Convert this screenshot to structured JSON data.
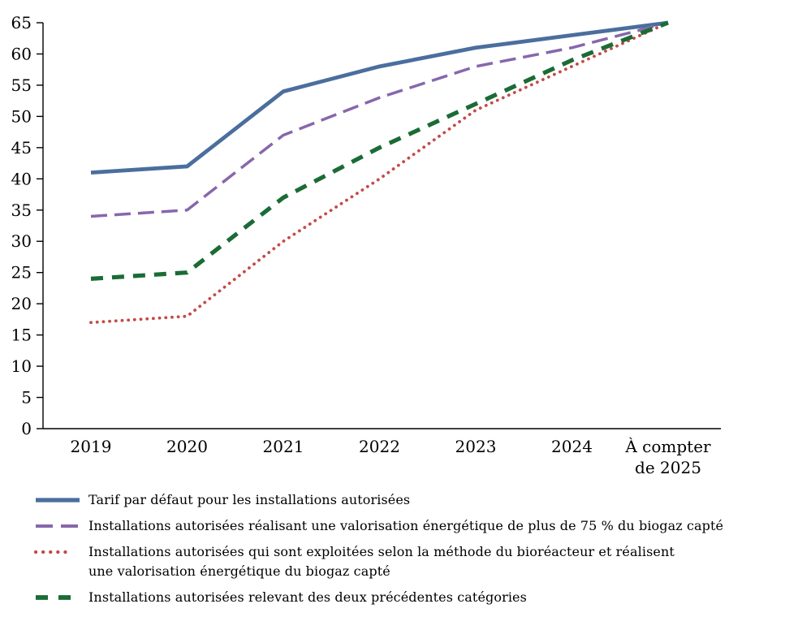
{
  "chart_data": {
    "type": "line",
    "title": "",
    "xlabel": "",
    "ylabel": "",
    "categories": [
      "2019",
      "2020",
      "2021",
      "2022",
      "2023",
      "2024",
      "À compter de 2025"
    ],
    "last_category_lines": [
      "À compter",
      "de 2025"
    ],
    "ylim": [
      0,
      65
    ],
    "ytick_step": 5,
    "ytick_labels": [
      "0",
      "5",
      "10",
      "15",
      "20",
      "25",
      "30",
      "35",
      "40",
      "45",
      "50",
      "55",
      "60",
      "65"
    ],
    "grid": false,
    "legend_position": "bottom",
    "axis_color": "#000000",
    "series": [
      {
        "name": "Tarif par défaut pour les installations autorisées",
        "slug": "tarif-par-defaut",
        "values": [
          41,
          42,
          54,
          58,
          61,
          63,
          65
        ],
        "color": "#4A6E9E",
        "style": "solid",
        "width": 4.8
      },
      {
        "name": "Installations autorisées réalisant une valorisation énergétique de plus de 75 % du biogaz capté",
        "slug": "valorisation-plus-75",
        "values": [
          34,
          35,
          47,
          53,
          58,
          61,
          65
        ],
        "color": "#8767AC",
        "style": "long-dash",
        "width": 3.5
      },
      {
        "name": "Installations autorisées qui sont exploitées selon la méthode du bioréacteur et réalisent une valorisation énergétique du biogaz capté",
        "slug": "bioreacteur-valorisation",
        "label_lines": [
          " Installations autorisées qui sont exploitées selon la méthode du bioréacteur et réalisent",
          "une valorisation énergétique du biogaz capté"
        ],
        "values": [
          17,
          18,
          30,
          40,
          51,
          58,
          65
        ],
        "color": "#C24B48",
        "style": "dotted",
        "width": 3.8
      },
      {
        "name": " Installations autorisées relevant des deux précédentes catégories",
        "slug": "deux-categories",
        "values": [
          24,
          25,
          37,
          45,
          52,
          59,
          65
        ],
        "color": "#1B6B35",
        "style": "short-dash",
        "width": 5.2
      }
    ]
  }
}
